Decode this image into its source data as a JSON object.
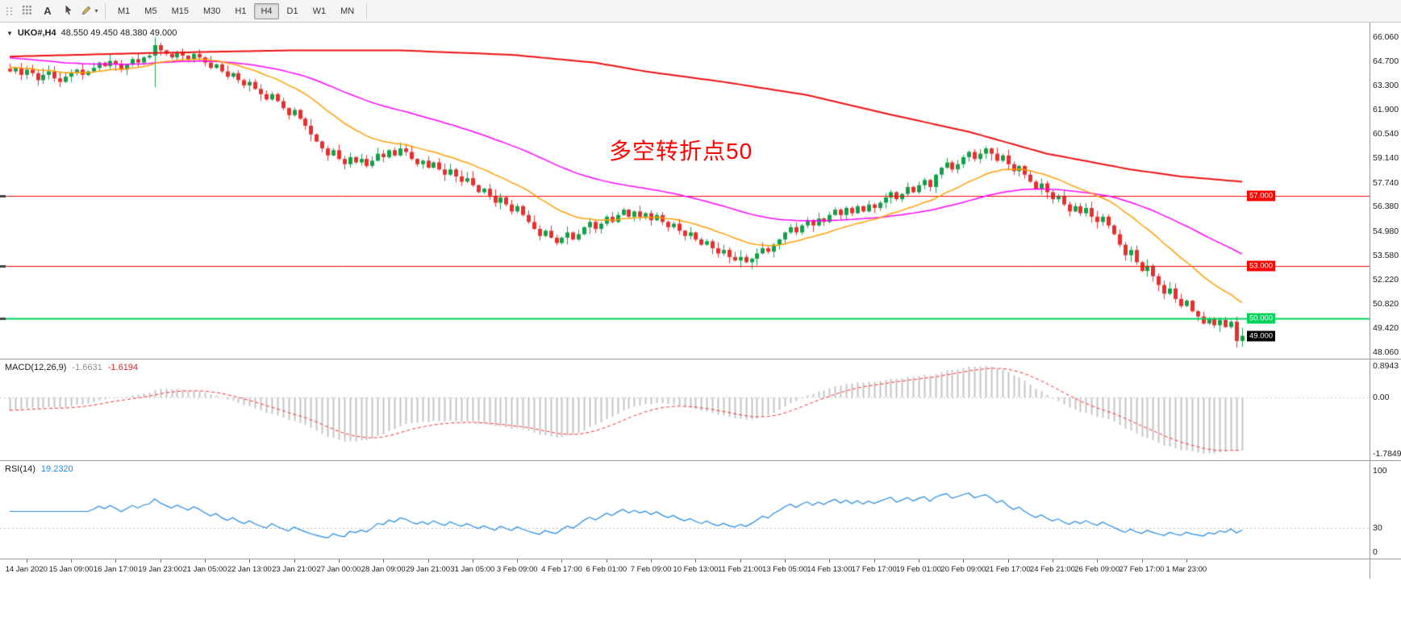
{
  "toolbar": {
    "text_tool_label": "A",
    "timeframes": [
      "M1",
      "M5",
      "M15",
      "M30",
      "H1",
      "H4",
      "D1",
      "W1",
      "MN"
    ],
    "active_timeframe": "H4"
  },
  "chart": {
    "symbol": "UKO#,H4",
    "ohlc": "48.550 49.450 48.380 49.000",
    "annotation": "多空转折点50",
    "annotation_color": "#ff0000",
    "levels": [
      {
        "name": "h-line-57000",
        "value": 57.0,
        "label": "57.000",
        "color": "#fe0000",
        "tag_bg": "#fe0000",
        "tag_fg": "#ffffff",
        "width": 1
      },
      {
        "name": "h-line-53000",
        "value": 53.0,
        "label": "53.000",
        "color": "#fe0000",
        "tag_bg": "#fe0000",
        "tag_fg": "#ffffff",
        "width": 1
      },
      {
        "name": "h-line-50000",
        "value": 50.0,
        "label": "50.000",
        "color": "#00d25a",
        "tag_bg": "#00d25a",
        "tag_fg": "#ffffff",
        "width": 2
      }
    ],
    "bid": {
      "value": 49.0,
      "label": "49.000",
      "tag_bg": "#000000",
      "tag_fg": "#ffffff"
    }
  },
  "macd": {
    "title": "MACD(12,26,9)",
    "main_value": "-1.6631",
    "signal_value": "-1.6194",
    "axis_max": "0.8943",
    "axis_zero": "0.00",
    "axis_min": "-1.7849"
  },
  "rsi": {
    "title": "RSI(14)",
    "value": "19.2320",
    "axis_top": "100",
    "axis_mid": "30",
    "axis_bottom": "0"
  },
  "chart_data": {
    "type": "candlestick",
    "symbol": "UKO#",
    "timeframe": "H4",
    "ylim": [
      47.69,
      66.89
    ],
    "y_ticks": [
      "66.060",
      "64.700",
      "63.300",
      "61.900",
      "60.540",
      "59.140",
      "57.740",
      "56.380",
      "54.980",
      "53.580",
      "52.220",
      "50.820",
      "49.420",
      "48.060"
    ],
    "time_ticks": [
      "14 Jan 2020",
      "15 Jan 09:00",
      "16 Jan 17:00",
      "19 Jan 23:00",
      "21 Jan 05:00",
      "22 Jan 13:00",
      "23 Jan 21:00",
      "27 Jan 00:00",
      "28 Jan 09:00",
      "29 Jan 21:00",
      "31 Jan 05:00",
      "3 Feb 09:00",
      "4 Feb 17:00",
      "6 Feb 01:00",
      "7 Feb 09:00",
      "10 Feb 13:00",
      "11 Feb 21:00",
      "13 Feb 05:00",
      "14 Feb 13:00",
      "17 Feb 17:00",
      "19 Feb 01:00",
      "20 Feb 09:00",
      "21 Feb 17:00",
      "24 Feb 21:00",
      "26 Feb 09:00",
      "27 Feb 17:00",
      "1 Mar 23:00"
    ],
    "tick_first_bar": 3,
    "tick_bar_step": 8,
    "closes": [
      64.1,
      64.3,
      63.9,
      64.2,
      64.0,
      63.6,
      63.9,
      64.1,
      63.7,
      63.5,
      63.8,
      64.0,
      64.2,
      63.9,
      64.1,
      64.3,
      64.6,
      64.4,
      64.7,
      64.5,
      64.2,
      64.5,
      64.8,
      64.6,
      64.9,
      65.0,
      65.6,
      65.3,
      65.1,
      64.9,
      65.2,
      65.0,
      64.8,
      65.1,
      64.9,
      64.6,
      64.3,
      64.5,
      64.1,
      63.8,
      64.0,
      63.6,
      63.3,
      63.5,
      63.1,
      62.8,
      62.5,
      62.8,
      62.4,
      62.0,
      61.6,
      61.9,
      61.4,
      61.0,
      60.5,
      60.1,
      59.7,
      59.3,
      59.6,
      59.1,
      58.8,
      59.2,
      58.9,
      59.1,
      58.7,
      59.0,
      59.4,
      59.2,
      59.6,
      59.3,
      59.7,
      59.5,
      59.1,
      58.8,
      59.0,
      58.6,
      58.9,
      58.5,
      58.2,
      58.5,
      58.1,
      57.8,
      58.0,
      57.6,
      57.2,
      57.4,
      57.0,
      56.6,
      56.9,
      56.5,
      56.1,
      56.4,
      55.9,
      55.5,
      55.1,
      54.7,
      55.0,
      54.6,
      54.3,
      54.6,
      54.9,
      54.5,
      54.8,
      55.2,
      55.5,
      55.1,
      55.4,
      55.8,
      55.5,
      55.9,
      56.2,
      55.8,
      56.1,
      55.8,
      56.0,
      55.6,
      55.9,
      55.5,
      55.2,
      55.4,
      55.0,
      54.7,
      54.9,
      54.5,
      54.2,
      54.4,
      54.0,
      53.7,
      53.9,
      53.5,
      53.3,
      53.5,
      53.2,
      53.4,
      53.7,
      54.0,
      53.8,
      54.2,
      54.5,
      54.9,
      55.2,
      54.9,
      55.3,
      55.6,
      55.3,
      55.7,
      55.5,
      55.9,
      56.2,
      55.9,
      56.3,
      56.0,
      56.4,
      56.1,
      56.5,
      56.3,
      56.6,
      56.9,
      57.2,
      56.8,
      57.1,
      57.5,
      57.2,
      57.6,
      57.9,
      57.5,
      58.2,
      58.6,
      58.9,
      58.5,
      58.8,
      59.2,
      59.5,
      59.1,
      59.4,
      59.7,
      59.4,
      59.0,
      59.3,
      58.8,
      58.4,
      58.7,
      58.2,
      57.8,
      57.4,
      57.7,
      57.2,
      56.8,
      57.0,
      56.5,
      56.1,
      56.4,
      56.0,
      56.3,
      55.8,
      55.5,
      55.8,
      55.3,
      54.8,
      54.2,
      53.6,
      53.9,
      53.2,
      52.7,
      53.0,
      52.4,
      51.9,
      51.4,
      51.7,
      51.1,
      50.7,
      51.0,
      50.4,
      50.1,
      49.7,
      50.0,
      49.6,
      49.9,
      49.5,
      49.8,
      48.7,
      49.0
    ],
    "wick_overrides": {
      "26": [
        66.05,
        63.2
      ],
      "221": [
        49.45,
        48.38
      ]
    },
    "candle_up_color": "#14a04a",
    "candle_down_color": "#e53030",
    "ma": {
      "red_color": "#ee1111",
      "red_waypoints": [
        [
          0,
          64.95
        ],
        [
          25,
          65.15
        ],
        [
          50,
          65.3
        ],
        [
          70,
          65.3
        ],
        [
          90,
          65.05
        ],
        [
          105,
          64.6
        ],
        [
          114,
          64.1
        ],
        [
          128,
          63.5
        ],
        [
          143,
          62.75
        ],
        [
          157,
          61.7
        ],
        [
          172,
          60.65
        ],
        [
          186,
          59.4
        ],
        [
          201,
          58.5
        ],
        [
          210,
          58.1
        ],
        [
          221,
          57.8
        ]
      ],
      "magenta": {
        "type": "ema",
        "period": 60,
        "seed": 64.9,
        "color": "#ff00ff"
      },
      "orange": {
        "type": "ema",
        "period": 20,
        "seed": 64.35,
        "color": "#ff9e00"
      }
    },
    "macd": {
      "params": [
        12,
        26,
        9
      ],
      "derived_from": "closes",
      "seed_offsets": [
        0.1,
        0.5
      ],
      "histogram_color": "#c4c4c4",
      "signal_color": "#ff2a2a"
    },
    "rsi": {
      "period": 14,
      "color": "#1e88e5",
      "level": 30
    }
  }
}
